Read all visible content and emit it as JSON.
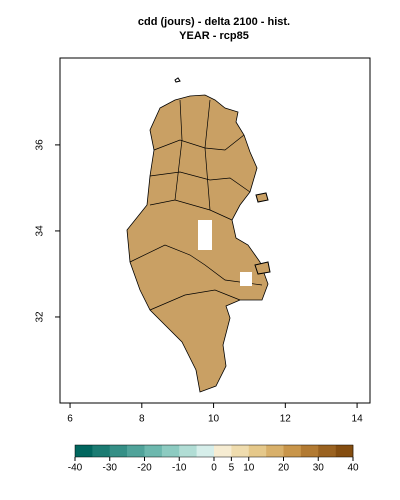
{
  "chart_data": {
    "type": "map",
    "title": "cdd (jours) - delta 2100 - hist.",
    "subtitle": "YEAR - rcp85",
    "xlim": [
      5.72,
      14.36
    ],
    "xticks": [
      6,
      8,
      10,
      12,
      14
    ],
    "ylim": [
      30,
      38.02
    ],
    "yticks": [
      32,
      34,
      36
    ],
    "colorbar": {
      "lim": [
        -40,
        40
      ],
      "ticks": [
        -40,
        -30,
        -20,
        -10,
        0,
        5,
        10,
        20,
        30,
        40
      ],
      "colors": [
        "#01665e",
        "#1b7b72",
        "#358f86",
        "#50a39a",
        "#6db8ae",
        "#8dcbc1",
        "#b1ddd5",
        "#d6eeea",
        "#f6ecd2",
        "#efdcae",
        "#e5c88a",
        "#d8b06a",
        "#c8954a",
        "#b27a32",
        "#9a6220",
        "#844d10"
      ]
    }
  }
}
